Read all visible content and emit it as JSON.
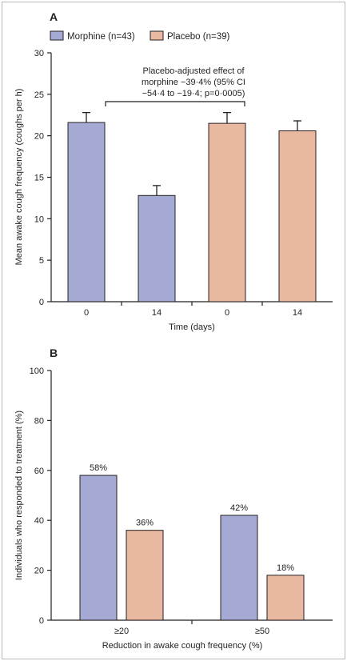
{
  "colors": {
    "morphine": "#a4aad4",
    "placebo": "#e8b8a0",
    "axis": "#231f20",
    "frame": "#b8b8b8"
  },
  "chart_data": [
    {
      "panel": "A",
      "type": "bar",
      "xlabel": "Time (days)",
      "ylabel": "Mean awake cough frequency (coughs per h)",
      "ylim": [
        0,
        30
      ],
      "yticks": [
        0,
        5,
        10,
        15,
        20,
        25,
        30
      ],
      "grid": false,
      "legend_position": "top-left",
      "legend": [
        {
          "name": "Morphine (n=43)",
          "color": "#a4aad4"
        },
        {
          "name": "Placebo (n=39)",
          "color": "#e8b8a0"
        }
      ],
      "categories": [
        "0",
        "14",
        "0",
        "14"
      ],
      "bars": [
        {
          "label": "0",
          "group": "Morphine (n=43)",
          "value": 21.6,
          "error": 1.2,
          "color": "#a4aad4"
        },
        {
          "label": "14",
          "group": "Morphine (n=43)",
          "value": 12.8,
          "error": 1.2,
          "color": "#a4aad4"
        },
        {
          "label": "0",
          "group": "Placebo (n=39)",
          "value": 21.5,
          "error": 1.3,
          "color": "#e8b8a0"
        },
        {
          "label": "14",
          "group": "Placebo (n=39)",
          "value": 20.6,
          "error": 1.2,
          "color": "#e8b8a0"
        }
      ],
      "annotation": {
        "lines": [
          "Placebo-adjusted effect of",
          "morphine −39·4% (95% CI",
          "−54·4 to −19·4; p=0·0005)"
        ]
      }
    },
    {
      "panel": "B",
      "type": "bar",
      "xlabel": "Reduction in awake cough frequency (%)",
      "ylabel": "Individuals who responded to treatment (%)",
      "ylim": [
        0,
        100
      ],
      "yticks": [
        0,
        20,
        40,
        60,
        80,
        100
      ],
      "grid": false,
      "categories": [
        "≥20",
        "≥50"
      ],
      "series": [
        {
          "name": "Morphine (n=43)",
          "values": [
            58,
            42
          ],
          "labels": [
            "58%",
            "42%"
          ],
          "color": "#a4aad4"
        },
        {
          "name": "Placebo (n=39)",
          "values": [
            36,
            18
          ],
          "labels": [
            "36%",
            "18%"
          ],
          "color": "#e8b8a0"
        }
      ]
    }
  ]
}
